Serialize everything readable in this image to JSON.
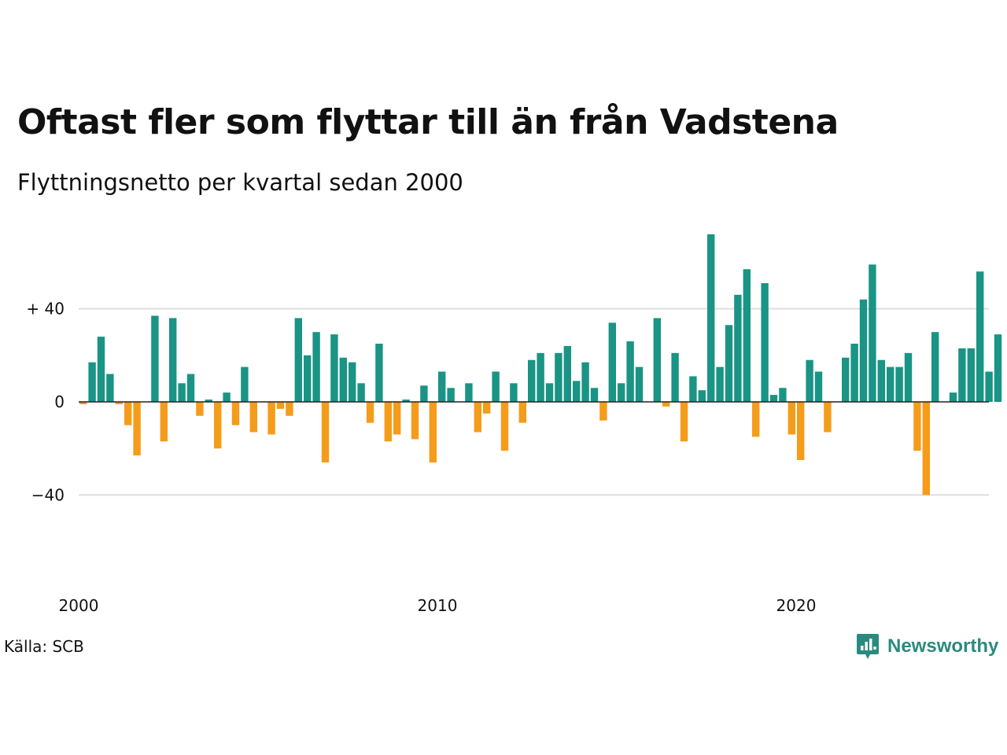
{
  "header": {
    "title": "Oftast fler som flyttar till än från Vadstena",
    "subtitle": "Flyttningsnetto per kvartal sedan 2000"
  },
  "footer": {
    "source": "Källa: SCB",
    "brand": "Newsworthy",
    "brand_color": "#2a8a7f"
  },
  "chart_data": {
    "type": "bar",
    "x_start": "2000 Q1",
    "xtick_labels": [
      "2000",
      "2010",
      "2020"
    ],
    "ytick_labels": [
      "+ 40",
      "0",
      "−40"
    ],
    "ylim": [
      -40,
      80
    ],
    "grid": true,
    "positive_color": "#1a9484",
    "negative_color": "#f59c1a",
    "values": [
      -1,
      17,
      28,
      12,
      -1,
      -10,
      -23,
      0,
      37,
      -17,
      36,
      8,
      12,
      -6,
      1,
      -20,
      4,
      -10,
      15,
      -13,
      0,
      -14,
      -3,
      -6,
      36,
      20,
      30,
      -26,
      29,
      19,
      17,
      8,
      -9,
      25,
      -17,
      -14,
      1,
      -16,
      7,
      -26,
      13,
      6,
      0,
      8,
      -13,
      -5,
      13,
      -21,
      8,
      -9,
      18,
      21,
      8,
      21,
      24,
      9,
      17,
      6,
      -8,
      34,
      8,
      26,
      15,
      0,
      36,
      -2,
      21,
      -17,
      11,
      5,
      72,
      15,
      33,
      46,
      57,
      -15,
      51,
      3,
      6,
      -14,
      -25,
      18,
      13,
      -13,
      0,
      19,
      25,
      44,
      59,
      18,
      15,
      15,
      21,
      -21,
      -40,
      30,
      0,
      4,
      23,
      23,
      56,
      13,
      29
    ]
  }
}
